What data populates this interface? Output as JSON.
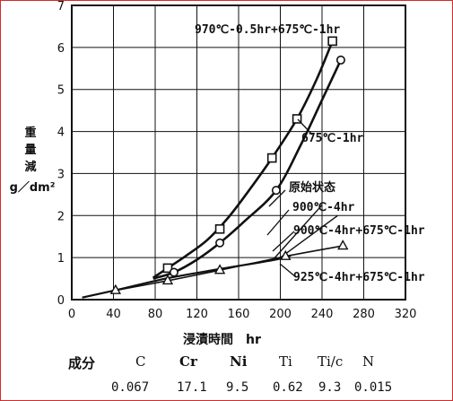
{
  "chart_data": {
    "type": "line",
    "xlabel": "浸漬時間　hr",
    "ylabel": [
      "重",
      "量",
      "減",
      "g／dm²"
    ],
    "xlim": [
      0,
      320
    ],
    "ylim": [
      0,
      7
    ],
    "xticks": [
      "0",
      "40",
      "80",
      "120",
      "160",
      "200",
      "240",
      "280",
      "320"
    ],
    "yticks": [
      "0",
      "1",
      "2",
      "3",
      "4",
      "5",
      "6",
      "7"
    ],
    "grid": true,
    "series": [
      {
        "name": "970℃-0.5hr+675℃-1hr",
        "marker": "square",
        "points": [
          [
            92,
            0.75
          ],
          [
            142,
            1.68
          ],
          [
            192,
            3.37
          ],
          [
            216,
            4.3
          ],
          [
            250,
            6.15
          ]
        ],
        "curve": [
          [
            78,
            0.52
          ],
          [
            92,
            0.75
          ],
          [
            110,
            1.05
          ],
          [
            130,
            1.42
          ],
          [
            150,
            1.95
          ],
          [
            170,
            2.6
          ],
          [
            192,
            3.37
          ],
          [
            216,
            4.3
          ],
          [
            235,
            5.25
          ],
          [
            250,
            6.15
          ]
        ]
      },
      {
        "name": "675℃-1hr",
        "marker": "circle",
        "points": [
          [
            98,
            0.65
          ],
          [
            142,
            1.35
          ],
          [
            196,
            2.6
          ],
          [
            258,
            5.7
          ]
        ],
        "curve": [
          [
            78,
            0.5
          ],
          [
            98,
            0.65
          ],
          [
            120,
            0.95
          ],
          [
            142,
            1.35
          ],
          [
            165,
            1.85
          ],
          [
            196,
            2.6
          ],
          [
            220,
            3.7
          ],
          [
            240,
            4.75
          ],
          [
            258,
            5.7
          ]
        ]
      },
      {
        "name": "原始状态",
        "marker": "none",
        "points": [],
        "curve": [
          [
            10,
            0.05
          ],
          [
            45,
            0.24
          ],
          [
            90,
            0.5
          ],
          [
            140,
            0.72
          ],
          [
            195,
            0.95
          ],
          [
            210,
            1.05
          ]
        ]
      },
      {
        "name": "900℃-4hr",
        "marker": "none",
        "points": [],
        "curve": [
          [
            193,
            0.95
          ],
          [
            240,
            2.25
          ]
        ]
      },
      {
        "name": "900℃-4hr+675℃-1hr",
        "marker": "none",
        "points": [],
        "curve": [
          [
            200,
            1.0
          ],
          [
            255,
            2.0
          ]
        ]
      },
      {
        "name": "925℃-4hr+675℃-1hr",
        "marker": "triangle",
        "points": [
          [
            42,
            0.22
          ],
          [
            92,
            0.45
          ],
          [
            142,
            0.7
          ],
          [
            205,
            1.03
          ],
          [
            260,
            1.28
          ]
        ],
        "curve": [
          [
            10,
            0.05
          ],
          [
            42,
            0.22
          ],
          [
            92,
            0.45
          ],
          [
            142,
            0.7
          ],
          [
            205,
            1.03
          ],
          [
            260,
            1.28
          ]
        ]
      }
    ],
    "annotations": [
      {
        "text": "970℃-0.5hr+675℃-1hr",
        "anchor": "top-right"
      },
      {
        "text": "675℃-1hr",
        "anchor": "right-middle"
      },
      {
        "text": "原始状态",
        "anchor": "center-right"
      },
      {
        "text": "900℃-4hr",
        "anchor": "center-right"
      },
      {
        "text": "900℃-4hr+675℃-1hr",
        "anchor": "right-lower"
      },
      {
        "text": "925℃-4hr+675℃-1hr",
        "anchor": "bottom-right"
      }
    ]
  },
  "composition": {
    "header_label": "成分",
    "elements": [
      "C",
      "Cr",
      "Ni",
      "Ti",
      "Ti/c",
      "N"
    ],
    "values": [
      "0.067",
      "17.1",
      "9.5",
      "0.62",
      "9.3",
      "0.015"
    ]
  },
  "colors": {
    "ink": "#111111",
    "frame": "#d22a2a",
    "grid": "#111111"
  }
}
